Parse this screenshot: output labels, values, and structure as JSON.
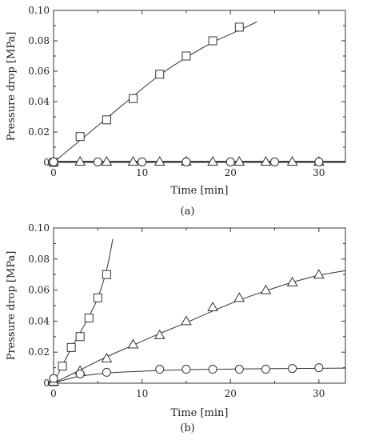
{
  "chart_data": [
    {
      "type": "scatter",
      "panel_label": "(a)",
      "xlabel": "Time [min]",
      "ylabel": "Pressure drop [MPa]",
      "xlim": [
        0,
        33
      ],
      "ylim": [
        0,
        0.1
      ],
      "xticks": [
        0,
        10,
        20,
        30
      ],
      "yticks": [
        0,
        0.02,
        0.04,
        0.06,
        0.08,
        0.1
      ],
      "xtick_labels": [
        "0",
        "10",
        "20",
        "30"
      ],
      "ytick_labels": [
        "0",
        "0.02",
        "0.04",
        "0.06",
        "0.08",
        "0.10"
      ],
      "grid": false,
      "series": [
        {
          "marker": "square",
          "points": [
            [
              0,
              0.0
            ],
            [
              3,
              0.017
            ],
            [
              6,
              0.028
            ],
            [
              9,
              0.042
            ],
            [
              12,
              0.058
            ],
            [
              15,
              0.07
            ],
            [
              18,
              0.08
            ],
            [
              21,
              0.089
            ]
          ],
          "fit": [
            [
              0,
              0.0
            ],
            [
              3,
              0.0145
            ],
            [
              6,
              0.029
            ],
            [
              9,
              0.0435
            ],
            [
              12,
              0.0575
            ],
            [
              15,
              0.069
            ],
            [
              18,
              0.079
            ],
            [
              21,
              0.087
            ],
            [
              23,
              0.0925
            ]
          ]
        },
        {
          "marker": "triangle",
          "points": [
            [
              0,
              0.0005
            ],
            [
              3,
              0.0005
            ],
            [
              6,
              0.0005
            ],
            [
              9,
              0.0005
            ],
            [
              12,
              0.0005
            ],
            [
              15,
              0.0005
            ],
            [
              18,
              0.0005
            ],
            [
              21,
              0.0005
            ],
            [
              24,
              0.0005
            ],
            [
              27,
              0.0005
            ],
            [
              30,
              0.0005
            ]
          ],
          "fit": [
            [
              0,
              0.0007
            ],
            [
              33,
              0.0007
            ]
          ]
        },
        {
          "marker": "circle",
          "points": [
            [
              0,
              0.0003
            ],
            [
              5,
              0.0003
            ],
            [
              10,
              0.0003
            ],
            [
              15,
              0.0003
            ],
            [
              20,
              0.0003
            ],
            [
              25,
              0.0003
            ],
            [
              30,
              0.0003
            ]
          ],
          "fit": [
            [
              0,
              0.0003
            ],
            [
              33,
              0.0003
            ]
          ]
        }
      ]
    },
    {
      "type": "scatter",
      "panel_label": "(b)",
      "xlabel": "Time [min]",
      "ylabel": "Pressure drop [MPa]",
      "xlim": [
        0,
        33
      ],
      "ylim": [
        0,
        0.1
      ],
      "xticks": [
        0,
        10,
        20,
        30
      ],
      "yticks": [
        0,
        0.02,
        0.04,
        0.06,
        0.08,
        0.1
      ],
      "xtick_labels": [
        "0",
        "10",
        "20",
        "30"
      ],
      "ytick_labels": [
        "0",
        "0.02",
        "0.04",
        "0.06",
        "0.08",
        "0.10"
      ],
      "grid": false,
      "series": [
        {
          "marker": "square",
          "points": [
            [
              0,
              0.001
            ],
            [
              1,
              0.011
            ],
            [
              2,
              0.023
            ],
            [
              3,
              0.03
            ],
            [
              4,
              0.042
            ],
            [
              5,
              0.055
            ],
            [
              6,
              0.07
            ]
          ],
          "fit": [
            [
              0,
              0.0
            ],
            [
              1,
              0.0115
            ],
            [
              2,
              0.0225
            ],
            [
              3,
              0.0325
            ],
            [
              4,
              0.043
            ],
            [
              5,
              0.055
            ],
            [
              6,
              0.073
            ],
            [
              6.7,
              0.093
            ]
          ]
        },
        {
          "marker": "triangle",
          "points": [
            [
              0,
              0.001
            ],
            [
              3,
              0.008
            ],
            [
              6,
              0.016
            ],
            [
              9,
              0.025
            ],
            [
              12,
              0.031
            ],
            [
              15,
              0.04
            ],
            [
              18,
              0.049
            ],
            [
              21,
              0.055
            ],
            [
              24,
              0.06
            ],
            [
              27,
              0.065
            ],
            [
              30,
              0.07
            ]
          ],
          "fit": [
            [
              0,
              0.0
            ],
            [
              3,
              0.0085
            ],
            [
              6,
              0.017
            ],
            [
              9,
              0.0245
            ],
            [
              12,
              0.032
            ],
            [
              15,
              0.039
            ],
            [
              18,
              0.0465
            ],
            [
              21,
              0.0535
            ],
            [
              24,
              0.0595
            ],
            [
              27,
              0.065
            ],
            [
              30,
              0.0695
            ],
            [
              33,
              0.0725
            ]
          ]
        },
        {
          "marker": "circle",
          "points": [
            [
              0,
              0.003
            ],
            [
              3,
              0.006
            ],
            [
              6,
              0.007
            ],
            [
              12,
              0.009
            ],
            [
              15,
              0.009
            ],
            [
              18,
              0.009
            ],
            [
              21,
              0.009
            ],
            [
              24,
              0.009
            ],
            [
              27,
              0.0095
            ],
            [
              30,
              0.01
            ]
          ],
          "fit": [
            [
              0,
              0.0
            ],
            [
              1.5,
              0.0025
            ],
            [
              3,
              0.0045
            ],
            [
              6,
              0.0065
            ],
            [
              9,
              0.0075
            ],
            [
              12,
              0.0082
            ],
            [
              15,
              0.0087
            ],
            [
              20,
              0.0091
            ],
            [
              25,
              0.0094
            ],
            [
              33,
              0.0097
            ]
          ]
        }
      ]
    }
  ]
}
